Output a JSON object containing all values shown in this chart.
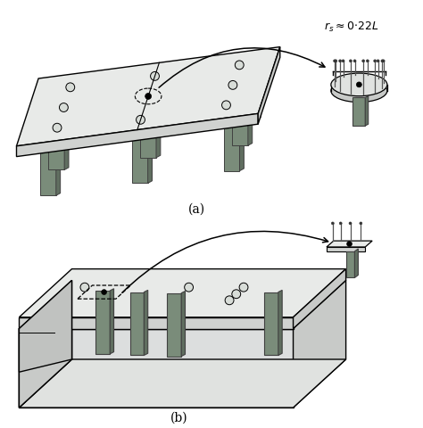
{
  "bg_color": "#ffffff",
  "slab_top_color": "#e8eae8",
  "slab_front_color": "#d0d2d0",
  "slab_right_color": "#c8cac8",
  "col_front_color": "#7a8c7a",
  "col_side_color": "#606e60",
  "col_edge_color": "#404040",
  "label_a": "(a)",
  "label_b": "(b)",
  "fig_width": 4.74,
  "fig_height": 4.8
}
